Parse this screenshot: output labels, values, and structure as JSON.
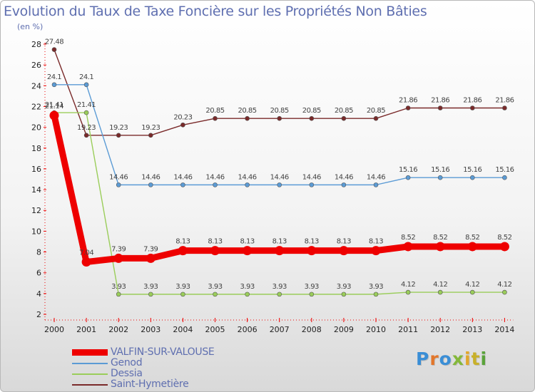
{
  "title": "Evolution du Taux de Taxe Foncière sur les Propriétés Non Bâties",
  "unit": "(en %)",
  "logo": "Proxiti",
  "chart_data": {
    "type": "line",
    "title": "Evolution du Taux de Taxe Foncière sur les Propriétés Non Bâties",
    "ylabel": "(en %)",
    "xlabel": "",
    "ylim": [
      2,
      28
    ],
    "yticks": [
      2,
      4,
      6,
      8,
      10,
      12,
      14,
      16,
      18,
      20,
      22,
      24,
      26,
      28
    ],
    "categories": [
      "2000",
      "2001",
      "2002",
      "2003",
      "2004",
      "2005",
      "2006",
      "2007",
      "2008",
      "2009",
      "2010",
      "2011",
      "2012",
      "2013",
      "2014"
    ],
    "series": [
      {
        "name": "VALFIN-SUR-VALOUSE",
        "color": "#ee0000",
        "values": [
          21.14,
          7.04,
          7.39,
          7.39,
          8.13,
          8.13,
          8.13,
          8.13,
          8.13,
          8.13,
          8.13,
          8.52,
          8.52,
          8.52,
          8.52
        ],
        "labels": [
          "21.14",
          "7.04",
          "7.39",
          "7.39",
          "8.13",
          "8.13",
          "8.13",
          "8.13",
          "8.13",
          "8.13",
          "8.13",
          "8.52",
          "8.52",
          "8.52",
          "8.52"
        ]
      },
      {
        "name": "Genod",
        "color": "#5b9bd5",
        "values": [
          24.1,
          24.1,
          14.46,
          14.46,
          14.46,
          14.46,
          14.46,
          14.46,
          14.46,
          14.46,
          14.46,
          15.16,
          15.16,
          15.16,
          15.16
        ],
        "labels": [
          "24.1",
          "24.1",
          "14.46",
          "14.46",
          "14.46",
          "14.46",
          "14.46",
          "14.46",
          "14.46",
          "14.46",
          "14.46",
          "15.16",
          "15.16",
          "15.16",
          "15.16"
        ]
      },
      {
        "name": "Dessia",
        "color": "#9acd5a",
        "values": [
          21.41,
          21.41,
          3.93,
          3.93,
          3.93,
          3.93,
          3.93,
          3.93,
          3.93,
          3.93,
          3.93,
          4.12,
          4.12,
          4.12,
          4.12
        ],
        "labels": [
          "21.41",
          "21.41",
          "3.93",
          "3.93",
          "3.93",
          "3.93",
          "3.93",
          "3.93",
          "3.93",
          "3.93",
          "3.93",
          "4.12",
          "4.12",
          "4.12",
          "4.12"
        ]
      },
      {
        "name": "Saint-Hymetière",
        "color": "#7a2a2a",
        "values": [
          27.48,
          19.23,
          19.23,
          19.23,
          20.23,
          20.85,
          20.85,
          20.85,
          20.85,
          20.85,
          20.85,
          21.86,
          21.86,
          21.86,
          21.86
        ],
        "labels": [
          "27.48",
          "19.23",
          "19.23",
          "19.23",
          "20.23",
          "20.85",
          "20.85",
          "20.85",
          "20.85",
          "20.85",
          "20.85",
          "21.86",
          "21.86",
          "21.86",
          "21.86"
        ]
      }
    ],
    "legend": [
      "VALFIN-SUR-VALOUSE",
      "Genod",
      "Dessia",
      "Saint-Hymetière"
    ],
    "grid": false
  }
}
